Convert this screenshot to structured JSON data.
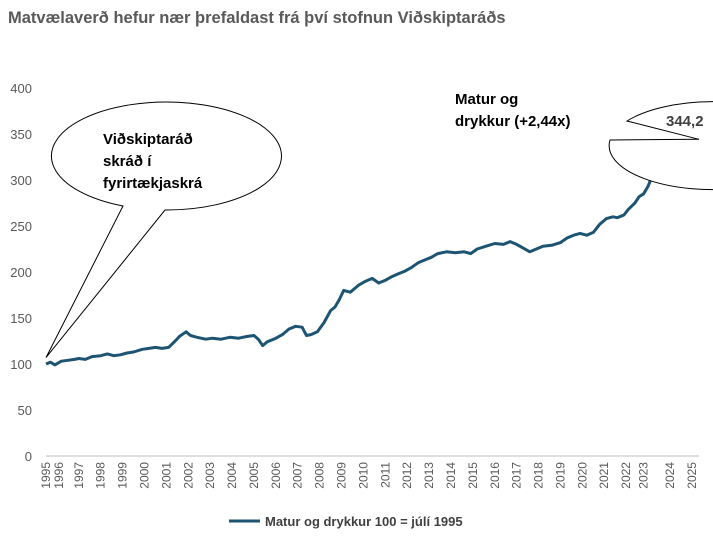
{
  "title": "Matvælaverð hefur nær þrefaldast frá því stofnun Viðskiptaráðs",
  "colors": {
    "line": "#1c5472",
    "axis": "#bfbfbf",
    "text": "#595959"
  },
  "chart_data": {
    "type": "line",
    "title": "Matvælaverð hefur nær þrefaldast frá því stofnun Viðskiptaráðs",
    "ylim": [
      0,
      400
    ],
    "yticks": [
      0,
      50,
      100,
      150,
      200,
      250,
      300,
      350,
      400
    ],
    "xlim": [
      1995.5,
      2025.33
    ],
    "xticks": [
      {
        "label": "1995",
        "x": 1995.5
      },
      {
        "label": "1996",
        "x": 1996.1
      },
      {
        "label": "1997",
        "x": 1997
      },
      {
        "label": "1998",
        "x": 1998
      },
      {
        "label": "1999",
        "x": 1999
      },
      {
        "label": "2000",
        "x": 2000
      },
      {
        "label": "2001",
        "x": 2001
      },
      {
        "label": "2002",
        "x": 2002
      },
      {
        "label": "2003",
        "x": 2003
      },
      {
        "label": "2004",
        "x": 2004
      },
      {
        "label": "2005",
        "x": 2005
      },
      {
        "label": "2006",
        "x": 2006
      },
      {
        "label": "2007",
        "x": 2007
      },
      {
        "label": "2008",
        "x": 2008
      },
      {
        "label": "2009",
        "x": 2009
      },
      {
        "label": "2010",
        "x": 2010
      },
      {
        "label": "2011",
        "x": 2011
      },
      {
        "label": "2012",
        "x": 2012
      },
      {
        "label": "2013",
        "x": 2013
      },
      {
        "label": "2014",
        "x": 2014
      },
      {
        "label": "2015",
        "x": 2015
      },
      {
        "label": "2016",
        "x": 2016
      },
      {
        "label": "2017",
        "x": 2017
      },
      {
        "label": "2018",
        "x": 2018
      },
      {
        "label": "2019",
        "x": 2019
      },
      {
        "label": "2020",
        "x": 2020
      },
      {
        "label": "2021",
        "x": 2021
      },
      {
        "label": "2022",
        "x": 2022
      },
      {
        "label": "2023",
        "x": 2022.8
      },
      {
        "label": "2024",
        "x": 2024
      },
      {
        "label": "2025",
        "x": 2025
      }
    ],
    "series": [
      {
        "name": "Matur og drykkur 100 = júlí 1995",
        "x": [
          1995.5,
          1995.7,
          1995.9,
          1996.2,
          1996.5,
          1996.8,
          1997.0,
          1997.3,
          1997.6,
          1998.0,
          1998.3,
          1998.6,
          1998.9,
          1999.2,
          1999.5,
          1999.9,
          2000.2,
          2000.5,
          2000.8,
          2001.1,
          2001.4,
          2001.6,
          2001.9,
          2002.1,
          2002.4,
          2002.8,
          2003.1,
          2003.5,
          2003.9,
          2004.3,
          2004.7,
          2005.0,
          2005.2,
          2005.4,
          2005.6,
          2006.0,
          2006.3,
          2006.6,
          2006.9,
          2007.2,
          2007.4,
          2007.6,
          2007.9,
          2008.2,
          2008.5,
          2008.7,
          2008.9,
          2009.1,
          2009.4,
          2009.8,
          2010.1,
          2010.4,
          2010.7,
          2011.0,
          2011.3,
          2011.6,
          2011.9,
          2012.2,
          2012.5,
          2012.8,
          2013.1,
          2013.4,
          2013.8,
          2014.2,
          2014.6,
          2014.9,
          2015.2,
          2015.6,
          2016.0,
          2016.4,
          2016.7,
          2017.0,
          2017.3,
          2017.6,
          2017.9,
          2018.2,
          2018.6,
          2019.0,
          2019.3,
          2019.6,
          2019.9,
          2020.2,
          2020.5,
          2020.8,
          2021.1,
          2021.4,
          2021.6,
          2021.9,
          2022.1,
          2022.4,
          2022.6,
          2022.8,
          2023.0,
          2023.2,
          2023.4,
          2023.6,
          2023.9,
          2024.2,
          2024.5,
          2024.8,
          2025.0,
          2025.33
        ],
        "values": [
          100,
          102,
          99,
          103,
          104,
          105,
          106,
          105,
          108,
          109,
          111,
          109,
          110,
          112,
          113,
          116,
          117,
          118,
          117,
          118,
          125,
          130,
          135,
          131,
          129,
          127,
          128,
          127,
          129,
          128,
          130,
          131,
          127,
          120,
          124,
          128,
          132,
          138,
          141,
          140,
          131,
          132,
          135,
          145,
          158,
          162,
          170,
          180,
          178,
          186,
          190,
          193,
          188,
          191,
          195,
          198,
          201,
          205,
          210,
          213,
          216,
          220,
          222,
          221,
          222,
          220,
          225,
          228,
          231,
          230,
          233,
          230,
          226,
          222,
          225,
          228,
          229,
          232,
          237,
          240,
          242,
          240,
          243,
          252,
          258,
          260,
          259,
          262,
          268,
          275,
          282,
          285,
          293,
          305,
          312,
          316,
          320,
          326,
          330,
          333,
          338,
          344.2
        ]
      }
    ],
    "annotations": [
      {
        "lines": [
          "Viðskiptaráð",
          "skráð í",
          "fyrirtækjaskrá"
        ],
        "anchor_x": 1995.5,
        "anchor_y": 107
      },
      {
        "lines": [
          "Matur og",
          "drykkur (+2,44x)"
        ],
        "anchor_x": 2025.33,
        "anchor_y": 344.2
      }
    ],
    "end_label": "344,2",
    "legend": {
      "position": "bottom",
      "label": "Matur og drykkur 100 = júlí 1995"
    },
    "grid": false
  }
}
